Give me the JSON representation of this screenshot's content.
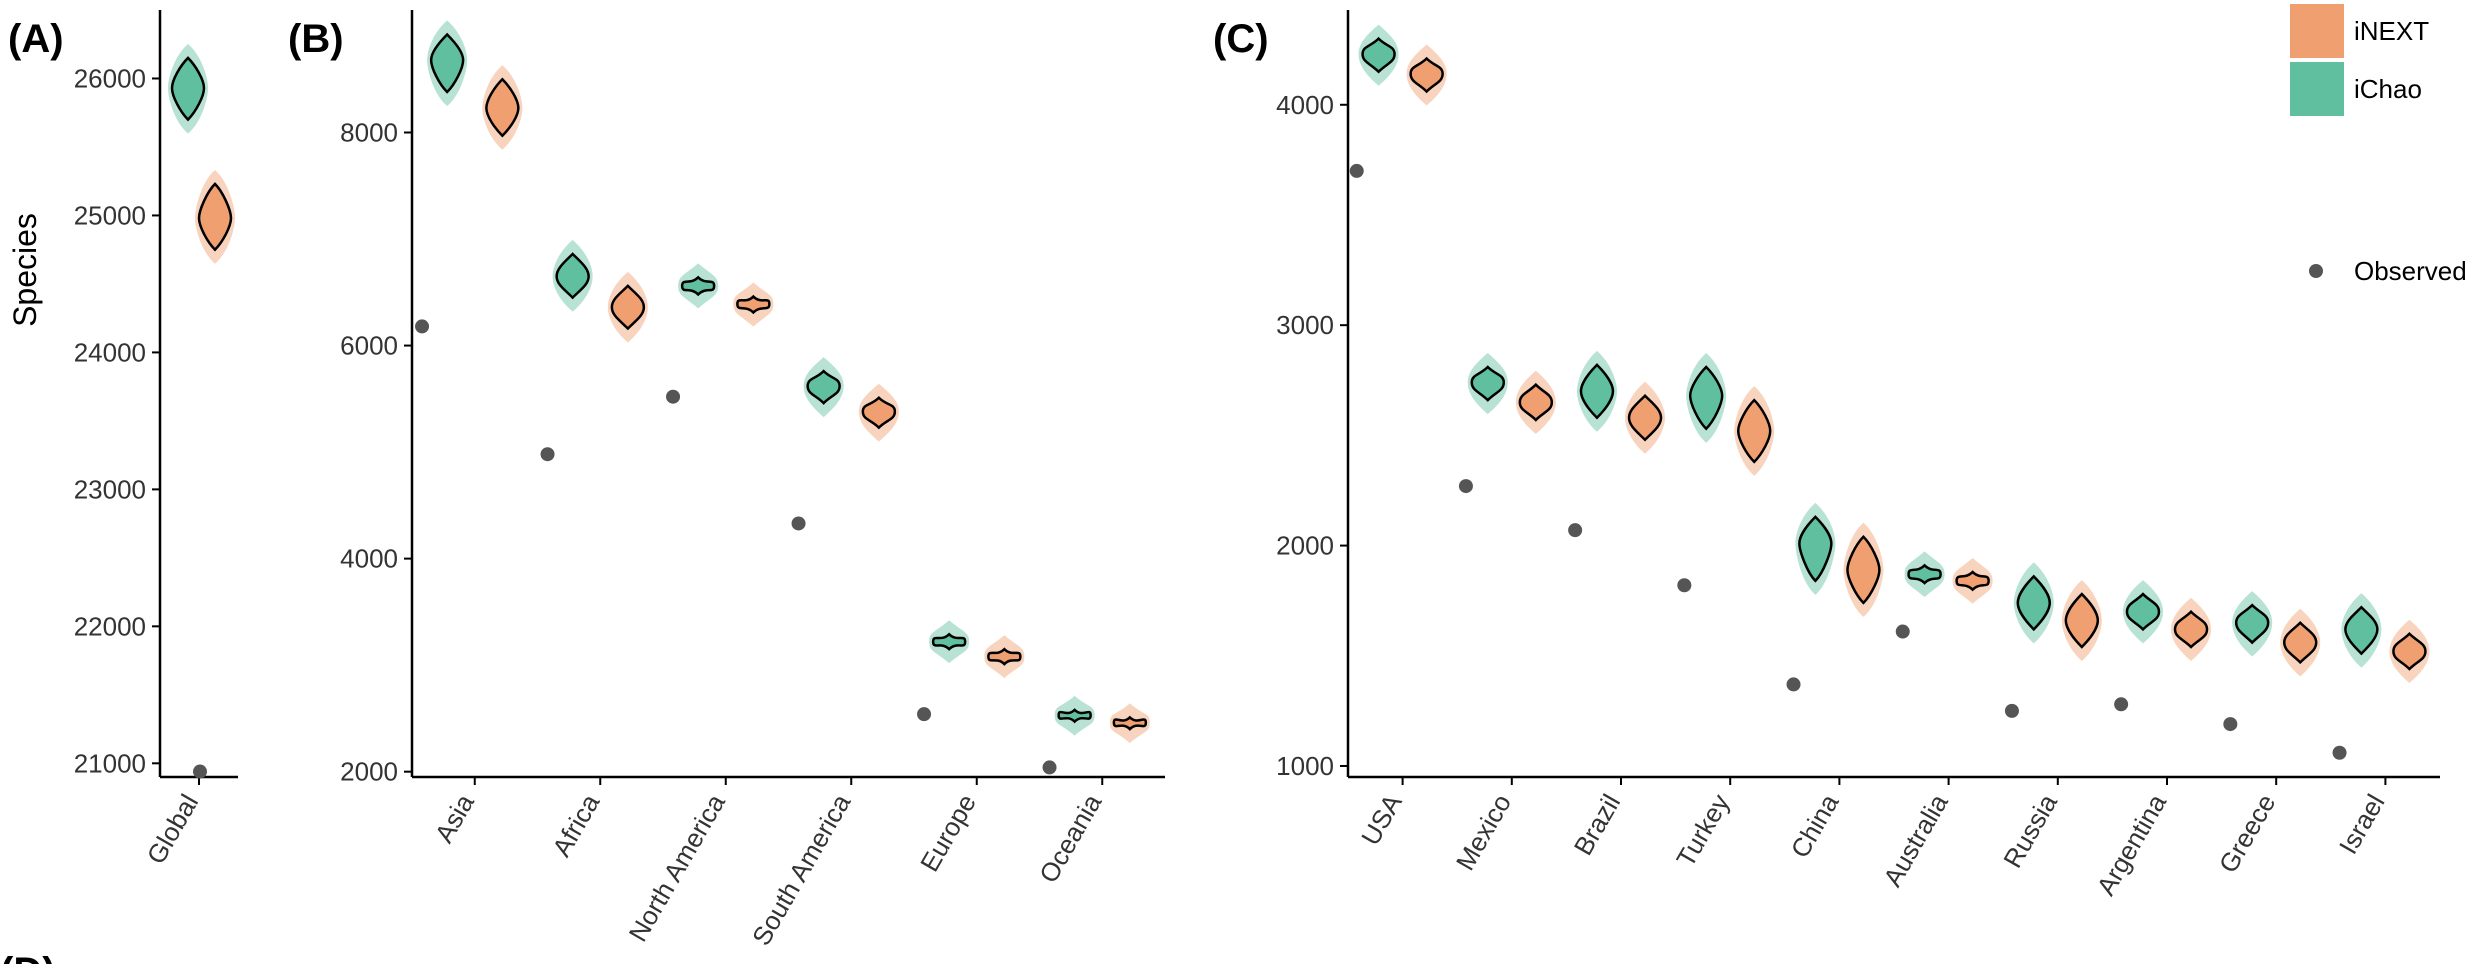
{
  "colors": {
    "inext": "#f0a070",
    "ichao": "#5fbf9f",
    "observed": "#555555"
  },
  "legend": [
    {
      "key": "inext",
      "label": "iNEXT"
    },
    {
      "key": "ichao",
      "label": "iChao"
    },
    {
      "key": "observed",
      "label": "Observed"
    }
  ],
  "y_axis_label": "Species",
  "footer_label": "(D)",
  "chart_data": [
    {
      "panel": "(A)",
      "type": "violin",
      "ylim": [
        20900,
        26500
      ],
      "yticks": [
        21000,
        22000,
        23000,
        24000,
        25000,
        26000
      ],
      "categories": [
        "Global"
      ],
      "series": [
        {
          "name": "iChao",
          "median": [
            25930
          ],
          "lo": [
            25700
          ],
          "hi": [
            26150
          ]
        },
        {
          "name": "iNEXT",
          "median": [
            24980
          ],
          "lo": [
            24750
          ],
          "hi": [
            25230
          ]
        },
        {
          "name": "Observed",
          "values": [
            20940
          ]
        }
      ]
    },
    {
      "panel": "(B)",
      "type": "violin",
      "ylim": [
        1950,
        9150
      ],
      "yticks": [
        2000,
        4000,
        6000,
        8000
      ],
      "categories": [
        "Asia",
        "Africa",
        "North America",
        "South America",
        "Europe",
        "Oceania"
      ],
      "series": [
        {
          "name": "iChao",
          "median": [
            8680,
            6650,
            6560,
            5620,
            3220,
            2530
          ],
          "lo": [
            8380,
            6450,
            6480,
            5460,
            3150,
            2470
          ],
          "hi": [
            8920,
            6860,
            6640,
            5760,
            3290,
            2580
          ]
        },
        {
          "name": "iNEXT",
          "median": [
            8230,
            6360,
            6390,
            5380,
            3080,
            2460
          ],
          "lo": [
            7970,
            6160,
            6310,
            5230,
            3010,
            2400
          ],
          "hi": [
            8500,
            6560,
            6460,
            5510,
            3150,
            2510
          ]
        },
        {
          "name": "Observed",
          "values": [
            6180,
            4980,
            5520,
            4330,
            2540,
            2040
          ]
        }
      ]
    },
    {
      "panel": "(C)",
      "type": "violin",
      "ylim": [
        950,
        4430
      ],
      "yticks": [
        1000,
        2000,
        3000,
        4000
      ],
      "categories": [
        "USA",
        "Mexico",
        "Brazil",
        "Turkey",
        "China",
        "Australia",
        "Russia",
        "Argentina",
        "Greece",
        "Israel"
      ],
      "series": [
        {
          "name": "iChao",
          "median": [
            4230,
            2740,
            2700,
            2680,
            2010,
            1870,
            1740,
            1700,
            1650,
            1620
          ],
          "lo": [
            4150,
            2660,
            2580,
            2530,
            1840,
            1830,
            1620,
            1620,
            1560,
            1510
          ],
          "hi": [
            4300,
            2810,
            2820,
            2810,
            2130,
            1910,
            1860,
            1780,
            1730,
            1720
          ]
        },
        {
          "name": "iNEXT",
          "median": [
            4140,
            2650,
            2580,
            2520,
            1890,
            1840,
            1660,
            1620,
            1560,
            1520
          ],
          "lo": [
            4060,
            2570,
            2480,
            2380,
            1740,
            1800,
            1540,
            1540,
            1470,
            1440
          ],
          "hi": [
            4210,
            2730,
            2680,
            2660,
            2040,
            1880,
            1780,
            1700,
            1650,
            1600
          ]
        },
        {
          "name": "Observed",
          "values": [
            3700,
            2270,
            2070,
            1820,
            1370,
            1610,
            1250,
            1280,
            1190,
            1060
          ]
        }
      ]
    }
  ]
}
